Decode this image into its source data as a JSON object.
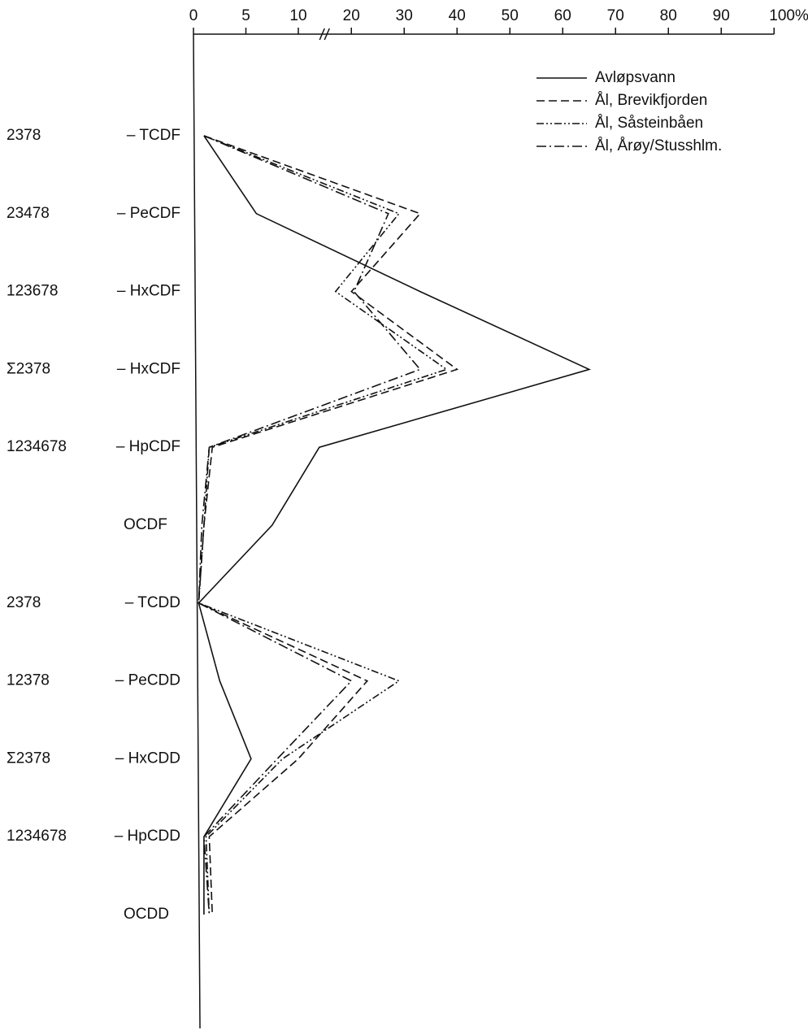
{
  "chart_data": {
    "type": "line",
    "orientation": "horizontal",
    "prefixes": [
      "2378",
      "23478",
      "123678",
      "Σ2378",
      "1234678",
      null,
      "2378",
      "12378",
      "Σ2378",
      "1234678",
      null
    ],
    "categories": [
      "– TCDF",
      "– PeCDF",
      "– HxCDF",
      "– HxCDF",
      "– HpCDF",
      "OCDF",
      "– TCDD",
      "– PeCDD",
      "– HxCDD",
      "– HpCDD",
      "OCDD"
    ],
    "xlim": [
      0,
      100
    ],
    "axis_break": [
      12.5,
      15
    ],
    "xticks": [
      0,
      5,
      10,
      20,
      30,
      40,
      50,
      60,
      70,
      80,
      90,
      {
        "value": 100,
        "label": "100%"
      }
    ],
    "legend": "top-right",
    "series": [
      {
        "name": "Avløpsvann",
        "color": "#111111",
        "linestyle": "solid",
        "values": [
          1,
          6,
          33,
          65,
          12,
          7.5,
          0.5,
          2.5,
          5.5,
          1,
          1
        ]
      },
      {
        "name": "Ål, Brevikfjorden",
        "color": "#111111",
        "linestyle": "dashed",
        "values": [
          1,
          33,
          20,
          40,
          1.8,
          1,
          0.5,
          23,
          10,
          1.5,
          1.8
        ]
      },
      {
        "name": "Ål, Såsteinbåen",
        "color": "#111111",
        "linestyle": "dash-dot-dot",
        "values": [
          1,
          29,
          17,
          38,
          1.5,
          1,
          0.5,
          29,
          8.5,
          1.2,
          1.5
        ]
      },
      {
        "name": "Ål, Årøy/Stusshlm.",
        "color": "#111111",
        "linestyle": "dash-dot",
        "values": [
          1,
          27,
          20.5,
          33,
          1.5,
          0.8,
          0.5,
          20,
          8,
          1,
          1.5
        ]
      }
    ]
  }
}
